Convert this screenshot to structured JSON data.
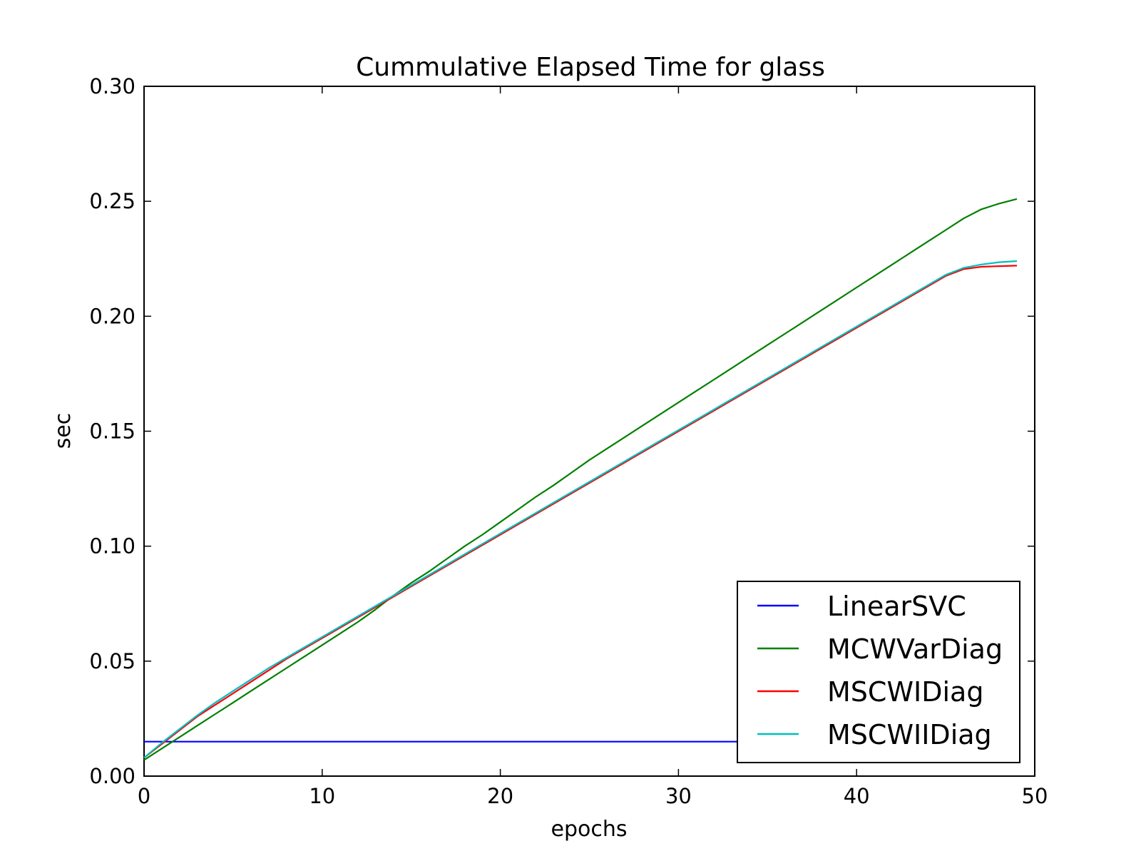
{
  "chart_data": {
    "type": "line",
    "title": "Cummulative Elapsed Time for glass",
    "xlabel": "epochs",
    "ylabel": "sec",
    "xlim": [
      0,
      50
    ],
    "ylim": [
      0,
      0.3
    ],
    "x_ticks": [
      "0",
      "10",
      "20",
      "30",
      "40",
      "50"
    ],
    "y_ticks": [
      "0.00",
      "0.05",
      "0.10",
      "0.15",
      "0.20",
      "0.25",
      "0.30"
    ],
    "grid": false,
    "legend_position": "lower-right",
    "x": [
      0,
      1,
      2,
      3,
      4,
      5,
      6,
      7,
      8,
      9,
      10,
      11,
      12,
      13,
      14,
      15,
      16,
      17,
      18,
      19,
      20,
      21,
      22,
      23,
      24,
      25,
      26,
      27,
      28,
      29,
      30,
      31,
      32,
      33,
      34,
      35,
      36,
      37,
      38,
      39,
      40,
      41,
      42,
      43,
      44,
      45,
      46,
      47,
      48,
      49
    ],
    "series": [
      {
        "name": "LinearSVC",
        "color": "#0000ff",
        "values": [
          0.015,
          0.015,
          0.015,
          0.015,
          0.015,
          0.015,
          0.015,
          0.015,
          0.015,
          0.015,
          0.015,
          0.015,
          0.015,
          0.015,
          0.015,
          0.015,
          0.015,
          0.015,
          0.015,
          0.015,
          0.015,
          0.015,
          0.015,
          0.015,
          0.015,
          0.015,
          0.015,
          0.015,
          0.015,
          0.015,
          0.015,
          0.015,
          0.015,
          0.015,
          0.015,
          0.015,
          0.015,
          0.015,
          0.015,
          0.015,
          0.015,
          0.015,
          0.015,
          0.015,
          0.015,
          0.015,
          0.015,
          0.015,
          0.015,
          0.015
        ]
      },
      {
        "name": "MCWVarDiag",
        "color": "#008000",
        "values": [
          0.007,
          0.012,
          0.017,
          0.022,
          0.027,
          0.032,
          0.037,
          0.042,
          0.047,
          0.052,
          0.057,
          0.062,
          0.067,
          0.0725,
          0.0785,
          0.084,
          0.089,
          0.0945,
          0.1,
          0.105,
          0.1105,
          0.116,
          0.1215,
          0.1265,
          0.132,
          0.1375,
          0.1425,
          0.1475,
          0.1525,
          0.1575,
          0.1625,
          0.1675,
          0.1725,
          0.1775,
          0.1825,
          0.1875,
          0.1925,
          0.1975,
          0.2025,
          0.2075,
          0.2125,
          0.2175,
          0.2225,
          0.2275,
          0.2325,
          0.2375,
          0.2425,
          0.2465,
          0.249,
          0.251
        ]
      },
      {
        "name": "MSCWIDiag",
        "color": "#ff0000",
        "values": [
          0.008,
          0.014,
          0.02,
          0.026,
          0.031,
          0.036,
          0.041,
          0.046,
          0.051,
          0.0555,
          0.06,
          0.0645,
          0.069,
          0.0735,
          0.078,
          0.0825,
          0.087,
          0.0915,
          0.096,
          0.1005,
          0.105,
          0.1095,
          0.114,
          0.1185,
          0.123,
          0.1275,
          0.132,
          0.1365,
          0.141,
          0.1455,
          0.15,
          0.1545,
          0.159,
          0.1635,
          0.168,
          0.1725,
          0.177,
          0.1815,
          0.186,
          0.1905,
          0.195,
          0.1995,
          0.204,
          0.2085,
          0.213,
          0.2175,
          0.2205,
          0.2215,
          0.2218,
          0.222
        ]
      },
      {
        "name": "MSCWIIDiag",
        "color": "#00bfbf",
        "values": [
          0.008,
          0.0145,
          0.0205,
          0.0265,
          0.032,
          0.037,
          0.042,
          0.047,
          0.0515,
          0.056,
          0.0605,
          0.065,
          0.0695,
          0.074,
          0.0785,
          0.083,
          0.0875,
          0.092,
          0.0965,
          0.101,
          0.1055,
          0.11,
          0.1145,
          0.119,
          0.1235,
          0.128,
          0.1325,
          0.137,
          0.1415,
          0.146,
          0.1505,
          0.155,
          0.1595,
          0.164,
          0.1685,
          0.173,
          0.1775,
          0.182,
          0.1865,
          0.191,
          0.1955,
          0.2,
          0.2045,
          0.209,
          0.2135,
          0.218,
          0.221,
          0.2225,
          0.2235,
          0.224
        ]
      }
    ]
  }
}
